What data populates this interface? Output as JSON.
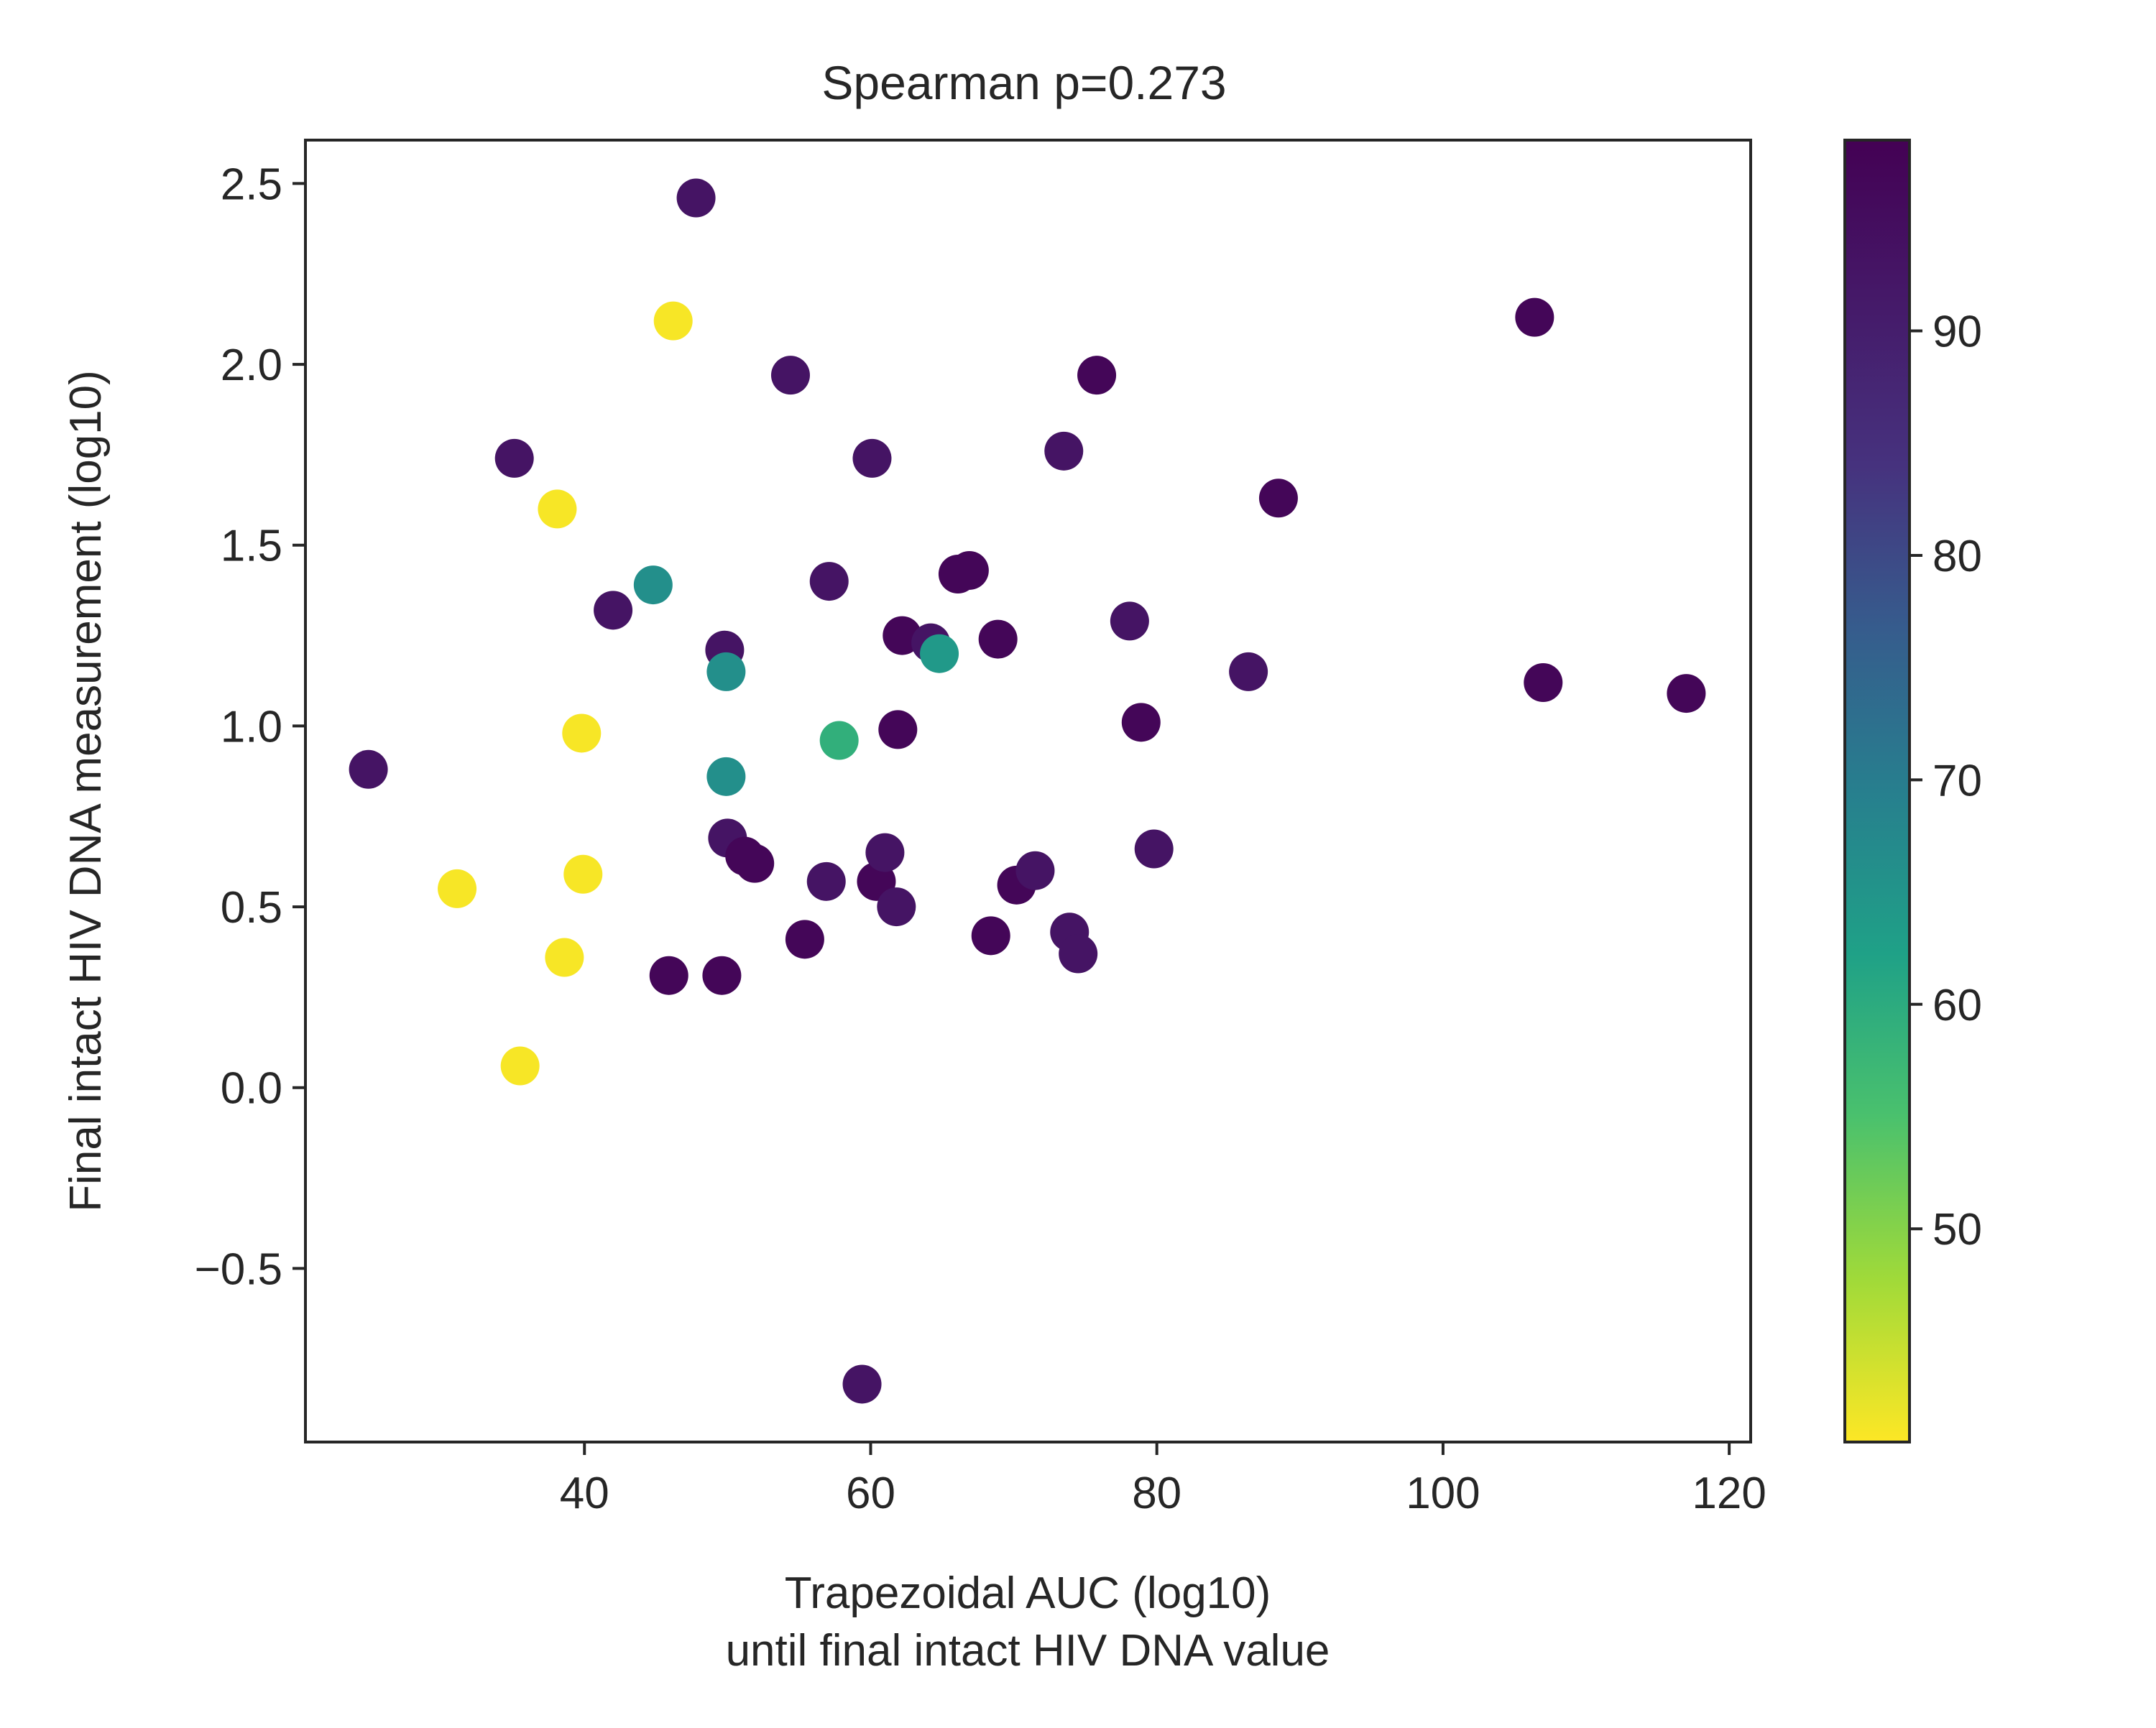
{
  "chart_data": {
    "type": "scatter",
    "title": "Spearman p=0.273",
    "xlabel": "Trapezoidal AUC (log10)",
    "xlabel2": "until final intact HIV DNA value",
    "ylabel": "Final intact HIV DNA measurement (log10)",
    "xlim": [
      20.5,
      121.5
    ],
    "ylim": [
      -0.98,
      2.62
    ],
    "xticks": [
      40,
      60,
      80,
      100,
      120
    ],
    "xtick_labels": [
      "40",
      "60",
      "80",
      "100",
      "120"
    ],
    "yticks": [
      -0.5,
      0.0,
      0.5,
      1.0,
      1.5,
      2.0,
      2.5
    ],
    "ytick_labels": [
      "−0.5",
      "0.0",
      "0.5",
      "1.0",
      "1.5",
      "2.0",
      "2.5"
    ],
    "grid": false,
    "colorbar": {
      "colormap": "viridis_r",
      "range": [
        40.5,
        98.5
      ],
      "ticks": [
        50,
        60,
        70,
        80,
        90
      ],
      "tick_labels": [
        "50",
        "60",
        "70",
        "80",
        "90"
      ]
    },
    "points": [
      {
        "x": 24.9,
        "y": 0.88,
        "c": 93
      },
      {
        "x": 31.1,
        "y": 0.55,
        "c": 41
      },
      {
        "x": 35.1,
        "y": 1.74,
        "c": 93
      },
      {
        "x": 35.5,
        "y": 0.06,
        "c": 41
      },
      {
        "x": 38.1,
        "y": 1.6,
        "c": 41
      },
      {
        "x": 38.6,
        "y": 0.36,
        "c": 41
      },
      {
        "x": 39.8,
        "y": 0.98,
        "c": 41
      },
      {
        "x": 39.9,
        "y": 0.59,
        "c": 41
      },
      {
        "x": 42.0,
        "y": 1.32,
        "c": 93
      },
      {
        "x": 44.8,
        "y": 1.39,
        "c": 66
      },
      {
        "x": 45.9,
        "y": 0.31,
        "c": 97
      },
      {
        "x": 46.2,
        "y": 2.12,
        "c": 41
      },
      {
        "x": 47.8,
        "y": 2.46,
        "c": 93
      },
      {
        "x": 49.6,
        "y": 0.31,
        "c": 97
      },
      {
        "x": 49.8,
        "y": 1.21,
        "c": 93
      },
      {
        "x": 49.9,
        "y": 1.15,
        "c": 66
      },
      {
        "x": 49.9,
        "y": 0.86,
        "c": 66
      },
      {
        "x": 50.0,
        "y": 0.69,
        "c": 93
      },
      {
        "x": 51.2,
        "y": 0.64,
        "c": 97
      },
      {
        "x": 51.9,
        "y": 0.62,
        "c": 97
      },
      {
        "x": 54.4,
        "y": 1.97,
        "c": 93
      },
      {
        "x": 55.4,
        "y": 0.41,
        "c": 97
      },
      {
        "x": 56.9,
        "y": 0.57,
        "c": 93
      },
      {
        "x": 57.1,
        "y": 1.4,
        "c": 93
      },
      {
        "x": 57.8,
        "y": 0.96,
        "c": 59
      },
      {
        "x": 59.4,
        "y": -0.82,
        "c": 93
      },
      {
        "x": 60.1,
        "y": 1.74,
        "c": 93
      },
      {
        "x": 60.4,
        "y": 0.57,
        "c": 97
      },
      {
        "x": 61.0,
        "y": 0.65,
        "c": 93
      },
      {
        "x": 61.8,
        "y": 0.5,
        "c": 93
      },
      {
        "x": 61.9,
        "y": 0.99,
        "c": 97
      },
      {
        "x": 62.2,
        "y": 1.25,
        "c": 97
      },
      {
        "x": 64.2,
        "y": 1.23,
        "c": 93
      },
      {
        "x": 64.8,
        "y": 1.2,
        "c": 64
      },
      {
        "x": 66.1,
        "y": 1.42,
        "c": 97
      },
      {
        "x": 66.9,
        "y": 1.43,
        "c": 97
      },
      {
        "x": 68.4,
        "y": 0.42,
        "c": 97
      },
      {
        "x": 68.9,
        "y": 1.24,
        "c": 97
      },
      {
        "x": 70.2,
        "y": 0.56,
        "c": 97
      },
      {
        "x": 71.5,
        "y": 0.6,
        "c": 93
      },
      {
        "x": 73.5,
        "y": 1.76,
        "c": 93
      },
      {
        "x": 73.9,
        "y": 0.43,
        "c": 93
      },
      {
        "x": 74.5,
        "y": 0.37,
        "c": 93
      },
      {
        "x": 75.8,
        "y": 1.97,
        "c": 97
      },
      {
        "x": 78.1,
        "y": 1.29,
        "c": 93
      },
      {
        "x": 78.9,
        "y": 1.01,
        "c": 97
      },
      {
        "x": 79.8,
        "y": 0.66,
        "c": 93
      },
      {
        "x": 86.4,
        "y": 1.15,
        "c": 93
      },
      {
        "x": 88.5,
        "y": 1.63,
        "c": 97
      },
      {
        "x": 106.4,
        "y": 2.13,
        "c": 97
      },
      {
        "x": 107.0,
        "y": 1.12,
        "c": 97
      },
      {
        "x": 117.0,
        "y": 1.09,
        "c": 97
      }
    ]
  }
}
